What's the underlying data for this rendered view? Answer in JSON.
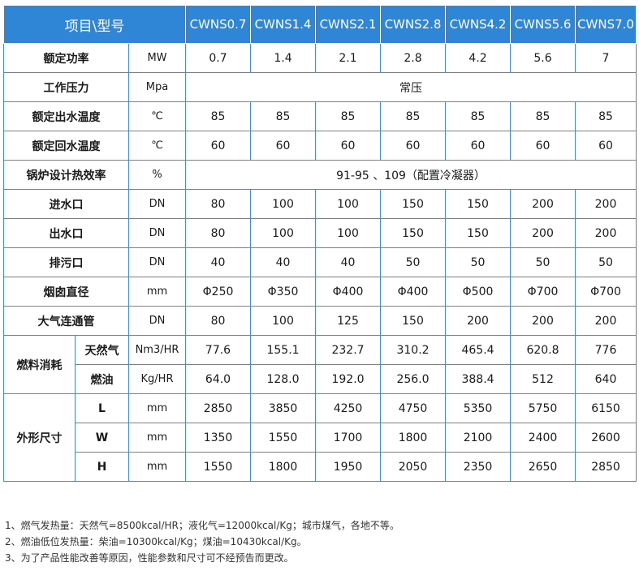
{
  "table": {
    "header": {
      "item": "项目\\型号",
      "models": [
        "CWNS0.7",
        "CWNS1.4",
        "CWNS2.1",
        "CWNS2.8",
        "CWNS4.2",
        "CWNS5.6",
        "CWNS7.0"
      ]
    },
    "rows": {
      "power": {
        "label": "额定功率",
        "unit": "MW",
        "values": [
          "0.7",
          "1.4",
          "2.1",
          "2.8",
          "4.2",
          "5.6",
          "7"
        ]
      },
      "pressure": {
        "label": "工作压力",
        "unit": "Mpa",
        "value": "常压"
      },
      "outlet_temp": {
        "label": "额定出水温度",
        "unit": "℃",
        "values": [
          "85",
          "85",
          "85",
          "85",
          "85",
          "85",
          "85"
        ]
      },
      "return_temp": {
        "label": "额定回水温度",
        "unit": "℃",
        "values": [
          "60",
          "60",
          "60",
          "60",
          "60",
          "60",
          "60"
        ]
      },
      "efficiency": {
        "label": "锅炉设计热效率",
        "unit": "%",
        "value": "91-95 、109（配置冷凝器）"
      },
      "inlet": {
        "label": "进水口",
        "unit": "DN",
        "values": [
          "80",
          "100",
          "100",
          "150",
          "150",
          "200",
          "200"
        ]
      },
      "outlet": {
        "label": "出水口",
        "unit": "DN",
        "values": [
          "80",
          "100",
          "100",
          "150",
          "150",
          "200",
          "200"
        ]
      },
      "drain": {
        "label": "排污口",
        "unit": "DN",
        "values": [
          "40",
          "40",
          "40",
          "50",
          "50",
          "50",
          "50"
        ]
      },
      "chimney": {
        "label": "烟囱直径",
        "unit": "mm",
        "values": [
          "Φ250",
          "Φ350",
          "Φ400",
          "Φ400",
          "Φ500",
          "Φ700",
          "Φ700"
        ]
      },
      "vent_pipe": {
        "label": "大气连通管",
        "unit": "DN",
        "values": [
          "80",
          "100",
          "125",
          "150",
          "200",
          "200",
          "200"
        ]
      },
      "fuel": {
        "label": "燃料消耗",
        "gas": {
          "label": "天然气",
          "unit": "Nm3/HR",
          "values": [
            "77.6",
            "155.1",
            "232.7",
            "310.2",
            "465.4",
            "620.8",
            "776"
          ]
        },
        "oil": {
          "label": "燃油",
          "unit": "Kg/HR",
          "values": [
            "64.0",
            "128.0",
            "192.0",
            "256.0",
            "388.4",
            "512",
            "640"
          ]
        }
      },
      "dimensions": {
        "label": "外形尺寸",
        "L": {
          "label": "L",
          "unit": "mm",
          "values": [
            "2850",
            "3850",
            "4250",
            "4750",
            "5350",
            "5750",
            "6150"
          ]
        },
        "W": {
          "label": "W",
          "unit": "mm",
          "values": [
            "1350",
            "1550",
            "1700",
            "1800",
            "2100",
            "2400",
            "2600"
          ]
        },
        "H": {
          "label": "H",
          "unit": "mm",
          "values": [
            "1550",
            "1800",
            "1950",
            "2050",
            "2350",
            "2650",
            "2850"
          ]
        }
      }
    }
  },
  "notes": [
    "1、燃气发热量：天然气=8500kcal/HR；液化气=12000kcal/Kg；城市煤气，各地不等。",
    "2、燃油低位发热量：柴油=10300kcal/Kg；煤油=10430kcal/Kg。",
    "3、为了产品性能改善等原因，性能参数和尺寸可不经预告而更改。"
  ],
  "colors": {
    "header_bg": "#2f85d6",
    "border": "#3f8fd7",
    "header_text": "#ffffff"
  }
}
